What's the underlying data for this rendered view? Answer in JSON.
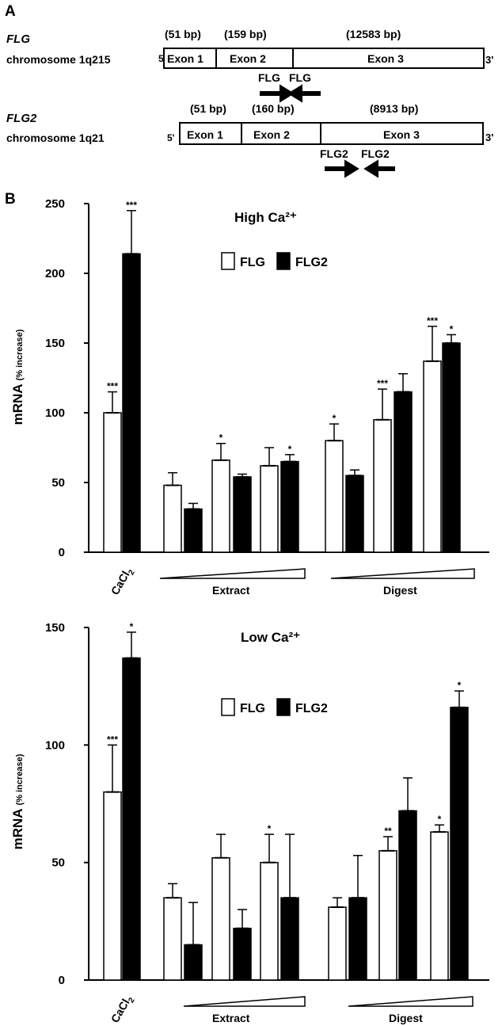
{
  "panelA": {
    "label": "A",
    "genes": [
      {
        "name": "FLG",
        "chromosome": "chromosome 1q215",
        "five_prime": "5'",
        "three_prime": "3'",
        "exons": [
          {
            "label": "Exon 1",
            "size": "(51 bp)"
          },
          {
            "label": "Exon 2",
            "size": "(159 bp)"
          },
          {
            "label": "Exon 3",
            "size": "(12583 bp)"
          }
        ],
        "primers": [
          "FLG",
          "FLG"
        ]
      },
      {
        "name": "FLG2",
        "chromosome": "chromosome 1q21",
        "five_prime": "5'",
        "three_prime": "3'",
        "exons": [
          {
            "label": "Exon 1",
            "size": "(51 bp)"
          },
          {
            "label": "Exon 2",
            "size": "(160 bp)"
          },
          {
            "label": "Exon 3",
            "size": "(8913 bp)"
          }
        ],
        "primers": [
          "FLG2",
          "FLG2"
        ]
      }
    ]
  },
  "panelB": {
    "label": "B",
    "legend": [
      "FLG",
      "FLG2"
    ],
    "colors": {
      "FLG": "#ffffff",
      "FLG2": "#000000"
    },
    "group_labels": [
      "CaCl2",
      "Extract",
      "Digest"
    ]
  },
  "chart_data": [
    {
      "type": "bar",
      "title": "High Ca²⁺",
      "ylabel": "mRNA (% increase)",
      "ylim": [
        0,
        250
      ],
      "yticks": [
        0,
        50,
        100,
        150,
        200,
        250
      ],
      "group_labels": [
        "CaCl2",
        "Extract",
        "Digest"
      ],
      "series": [
        {
          "name": "FLG",
          "values": [
            100,
            48,
            66,
            62,
            80,
            95,
            137
          ],
          "errors": [
            15,
            9,
            12,
            13,
            12,
            22,
            25
          ],
          "significance": [
            "***",
            "",
            "*",
            "",
            "*",
            "***",
            "***"
          ]
        },
        {
          "name": "FLG2",
          "values": [
            214,
            31,
            54,
            65,
            55,
            115,
            150
          ],
          "errors": [
            31,
            4,
            2,
            5,
            4,
            13,
            6
          ],
          "significance": [
            "***",
            "",
            "",
            "*",
            "",
            "",
            "*"
          ]
        }
      ]
    },
    {
      "type": "bar",
      "title": "Low Ca²⁺",
      "ylabel": "mRNA (% increase)",
      "ylim": [
        0,
        150
      ],
      "yticks": [
        0,
        50,
        100,
        150
      ],
      "group_labels": [
        "CaCl2",
        "Extract",
        "Digest"
      ],
      "series": [
        {
          "name": "FLG",
          "values": [
            80,
            35,
            52,
            50,
            31,
            55,
            63
          ],
          "errors": [
            20,
            6,
            10,
            12,
            4,
            6,
            3
          ],
          "significance": [
            "***",
            "",
            "",
            "*",
            "",
            "**",
            "*"
          ]
        },
        {
          "name": "FLG2",
          "values": [
            137,
            15,
            22,
            35,
            35,
            72,
            116
          ],
          "errors": [
            11,
            18,
            8,
            27,
            18,
            14,
            7
          ],
          "significance": [
            "*",
            "",
            "",
            "",
            "",
            "",
            "*"
          ]
        }
      ]
    }
  ]
}
